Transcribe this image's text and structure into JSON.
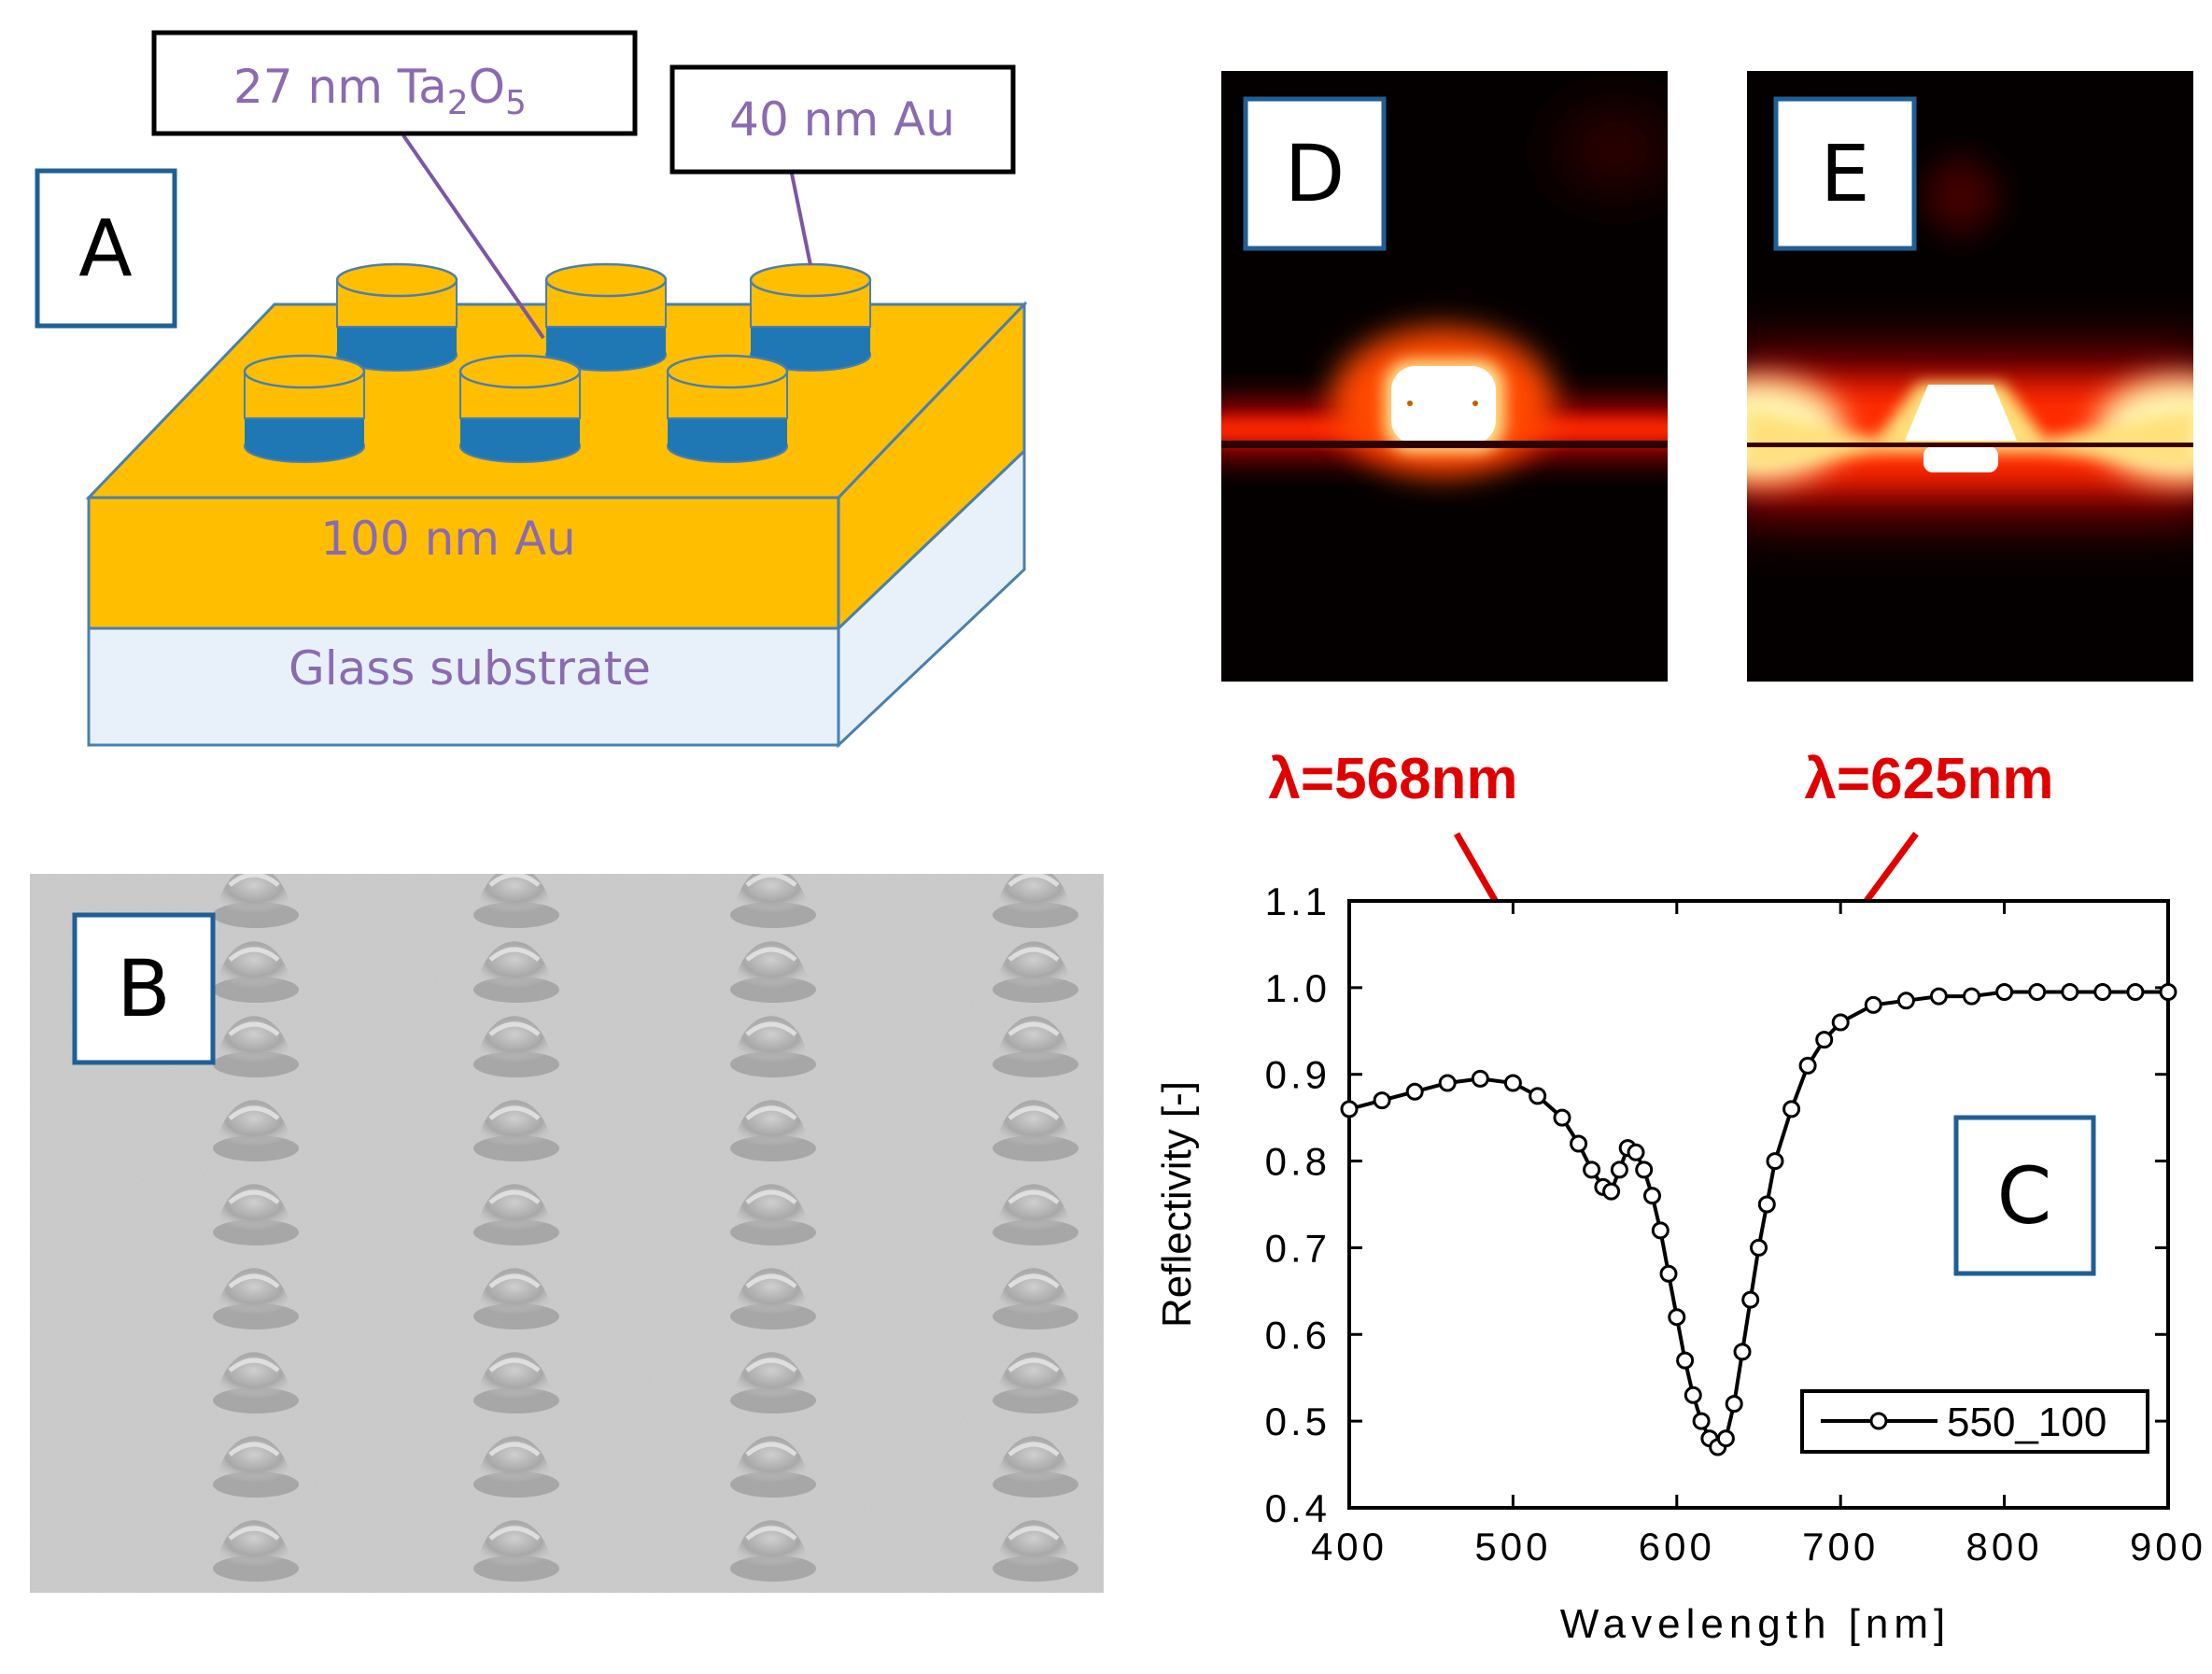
{
  "panel_a": {
    "letter": "A",
    "label_ta2o5": {
      "prefix": "27 nm Ta",
      "sub1": "2",
      "mid": "O",
      "sub2": "5"
    },
    "label_au_top": "40 nm Au",
    "label_au_layer": "100 nm Au",
    "label_substrate": "Glass substrate",
    "colors": {
      "gold": "#ffbf00",
      "blue": "#1f78b4",
      "glass": "#e8f1fa",
      "text": "#8a6bb0",
      "leader": "#7b57a6"
    }
  },
  "panel_b": {
    "letter": "B"
  },
  "panel_d": {
    "letter": "D"
  },
  "panel_e": {
    "letter": "E"
  },
  "annotations": {
    "lambda1": "λ=568nm",
    "lambda2": "λ=625nm",
    "color": "#e00000"
  },
  "panel_c": {
    "letter": "C"
  },
  "chart_data": {
    "type": "line",
    "title": "",
    "xlabel": "Wavelength [nm]",
    "ylabel": "Reflectivity [-]",
    "xlim": [
      400,
      900
    ],
    "ylim": [
      0.4,
      1.1
    ],
    "xticks": [
      400,
      500,
      600,
      700,
      800,
      900
    ],
    "xtick_labels": [
      "400",
      "500",
      "600",
      "700",
      "800",
      "900"
    ],
    "yticks": [
      0.4,
      0.5,
      0.6,
      0.7,
      0.8,
      0.9,
      1.0,
      1.1
    ],
    "ytick_labels": [
      "0.4",
      "0.5",
      "0.6",
      "0.7",
      "0.8",
      "0.9",
      "1.0",
      "1.1"
    ],
    "legend": "bottom-right",
    "series": [
      {
        "name": "550_100",
        "x": [
          400,
          420,
          440,
          460,
          480,
          500,
          515,
          530,
          540,
          548,
          555,
          560,
          565,
          570,
          575,
          580,
          585,
          590,
          595,
          600,
          605,
          610,
          615,
          620,
          625,
          630,
          635,
          640,
          645,
          650,
          655,
          660,
          670,
          680,
          690,
          700,
          720,
          740,
          760,
          780,
          800,
          820,
          840,
          860,
          880,
          900
        ],
        "values": [
          0.86,
          0.87,
          0.88,
          0.89,
          0.895,
          0.89,
          0.875,
          0.85,
          0.82,
          0.79,
          0.77,
          0.765,
          0.79,
          0.815,
          0.81,
          0.79,
          0.76,
          0.72,
          0.67,
          0.62,
          0.57,
          0.53,
          0.5,
          0.48,
          0.47,
          0.48,
          0.52,
          0.58,
          0.64,
          0.7,
          0.75,
          0.8,
          0.86,
          0.91,
          0.94,
          0.96,
          0.98,
          0.985,
          0.99,
          0.99,
          0.995,
          0.995,
          0.995,
          0.995,
          0.995,
          0.995
        ]
      }
    ]
  }
}
